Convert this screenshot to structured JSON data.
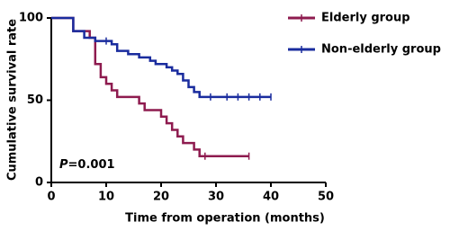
{
  "chart_data": {
    "type": "step",
    "xlabel": "Time from operation (months)",
    "ylabel": "Cumulative survival rate",
    "annotation": [
      "P",
      "=0.001"
    ],
    "xlim": [
      0,
      50
    ],
    "xticks": [
      0,
      10,
      20,
      30,
      40,
      50
    ],
    "ylim": [
      0,
      100
    ],
    "yticks": [
      0,
      50,
      100
    ],
    "series": [
      {
        "name": "Elderly group",
        "color": "#8e1b4f",
        "x": [
          0,
          4,
          7,
          8,
          9,
          10,
          11,
          12,
          16,
          17,
          20,
          21,
          22,
          23,
          24,
          26,
          27,
          36
        ],
        "values": [
          100,
          92,
          88,
          72,
          64,
          60,
          56,
          52,
          48,
          44,
          40,
          36,
          32,
          28,
          24,
          20,
          16,
          16
        ],
        "censored": [
          28,
          36
        ]
      },
      {
        "name": "Non-elderly group",
        "color": "#1a2c9e",
        "x": [
          0,
          4,
          6,
          8,
          11,
          12,
          14,
          16,
          18,
          19,
          21,
          22,
          23,
          24,
          25,
          26,
          27,
          40
        ],
        "values": [
          100,
          92,
          88,
          86,
          84,
          80,
          78,
          76,
          74,
          72,
          70,
          68,
          66,
          62,
          58,
          55,
          52,
          52
        ],
        "censored": [
          10,
          29,
          32,
          34,
          36,
          38,
          40
        ]
      }
    ]
  }
}
